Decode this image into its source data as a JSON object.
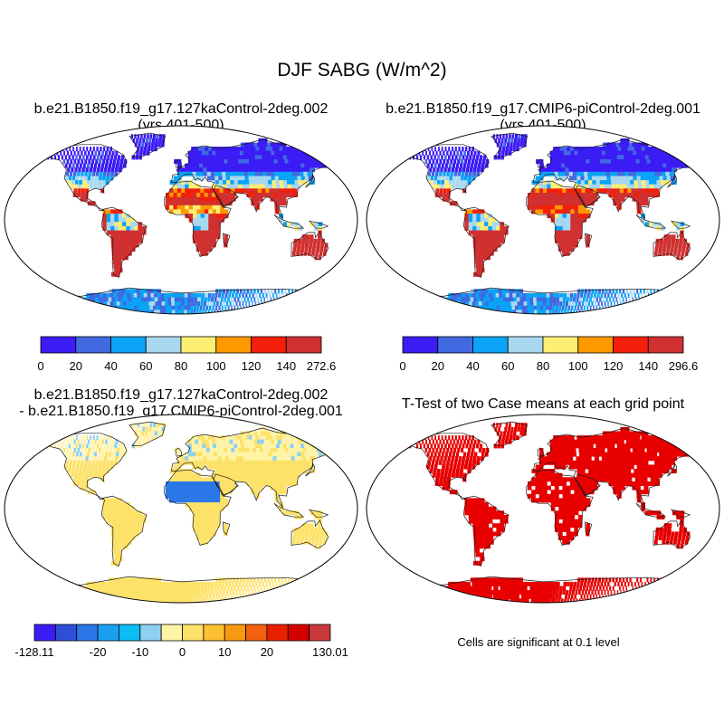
{
  "title": "DJF SABG (W/m^2)",
  "note": "Cells are significant at 0.1 level",
  "colors": {
    "land_outline": "#1a1a1a",
    "map_border": "#000000",
    "map_background": "#ffffff",
    "significant": "#e80000"
  },
  "panels": [
    {
      "title_line1": "b.e21.B1850.f19_g17.127kaControl-2deg.002",
      "title_line2": "(yrs 401-500)",
      "kind": "field"
    },
    {
      "title_line1": "b.e21.B1850.f19_g17.CMIP6-piControl-2deg.001",
      "title_line2": "(yrs 401-500)",
      "kind": "field"
    },
    {
      "title_line1": "b.e21.B1850.f19_g17.127kaControl-2deg.002",
      "title_line2": "- b.e21.B1850.f19_g17.CMIP6-piControl-2deg.001",
      "kind": "difference"
    },
    {
      "title_line1": "T-Test of two Case means at each grid point",
      "title_line2": "",
      "kind": "significance"
    }
  ],
  "chart_data": [
    {
      "type": "heatmap",
      "title": "b.e21.B1850.f19_g17.127kaControl-2deg.002 (yrs 401-500)",
      "projection": "robinson",
      "colorbar": {
        "boundaries": [
          0,
          20,
          40,
          60,
          80,
          100,
          120,
          140,
          272.6
        ],
        "tick_labels": [
          "0",
          "20",
          "40",
          "60",
          "80",
          "100",
          "120",
          "140",
          "272.6"
        ],
        "colors": [
          "#3b1cf5",
          "#4169e1",
          "#0aa3f5",
          "#a8d8f0",
          "#fdee73",
          "#ff9900",
          "#f2200a",
          "#d03030"
        ]
      }
    },
    {
      "type": "heatmap",
      "title": "b.e21.B1850.f19_g17.CMIP6-piControl-2deg.001 (yrs 401-500)",
      "projection": "robinson",
      "colorbar": {
        "boundaries": [
          0,
          20,
          40,
          60,
          80,
          100,
          120,
          140,
          296.6
        ],
        "tick_labels": [
          "0",
          "20",
          "40",
          "60",
          "80",
          "100",
          "120",
          "140",
          "296.6"
        ],
        "colors": [
          "#3b1cf5",
          "#4169e1",
          "#0aa3f5",
          "#a8d8f0",
          "#fdee73",
          "#ff9900",
          "#f2200a",
          "#d03030"
        ]
      }
    },
    {
      "type": "heatmap",
      "title": "b.e21.B1850.f19_g17.127kaControl-2deg.002 - b.e21.B1850.f19_g17.CMIP6-piControl-2deg.001",
      "projection": "robinson",
      "colorbar": {
        "boundaries": [
          -128.11,
          -40,
          -30,
          -20,
          -15,
          -10,
          -5,
          0,
          5,
          10,
          15,
          20,
          30,
          40,
          130.01
        ],
        "tick_labels": [
          "-128.11",
          "",
          "",
          "-20",
          "",
          "-10",
          "",
          "0",
          "",
          "10",
          "",
          "20",
          "",
          "",
          "130.01"
        ],
        "colors": [
          "#3b1cf5",
          "#2f4fd8",
          "#2a78e8",
          "#1aa0f0",
          "#0abdf5",
          "#8fd0f0",
          "#fff3a8",
          "#fde26a",
          "#fdc030",
          "#f89a10",
          "#f26010",
          "#e82000",
          "#d40000",
          "#c83838"
        ]
      }
    },
    {
      "type": "heatmap",
      "title": "T-Test of two Case means at each grid point",
      "projection": "robinson",
      "legend": "Cells are significant at 0.1 level"
    }
  ]
}
